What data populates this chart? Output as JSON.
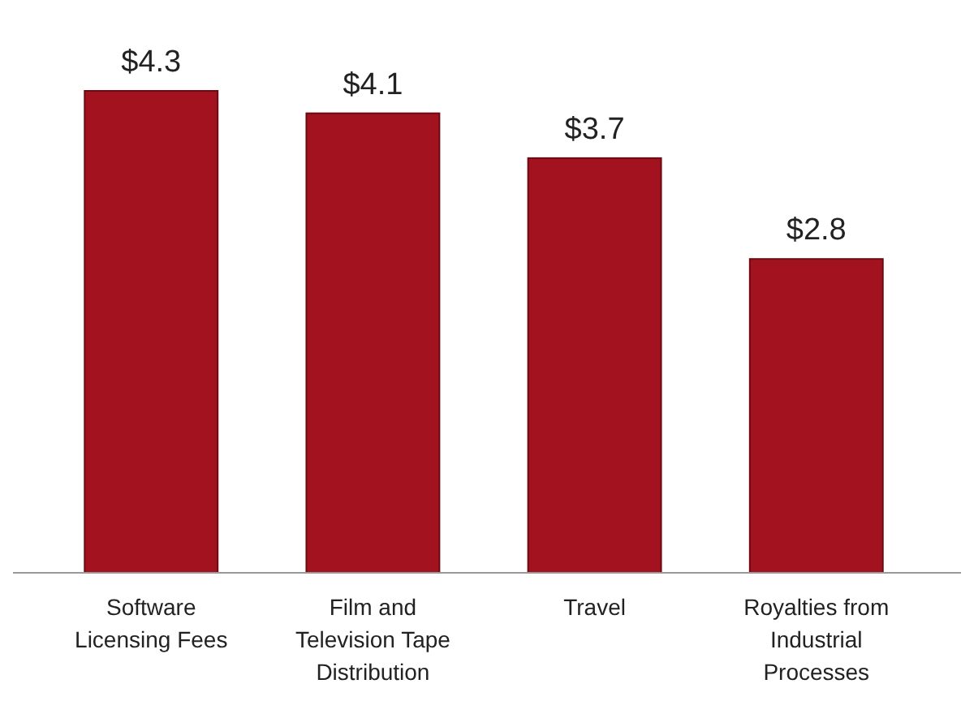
{
  "chart_data": {
    "type": "bar",
    "categories": [
      "Software Licensing Fees",
      "Film and Television Tape Distribution",
      "Travel",
      "Royalties from Industrial Processes"
    ],
    "values": [
      4.3,
      4.1,
      3.7,
      2.8
    ],
    "value_labels": [
      "$4.3",
      "$4.1",
      "$3.7",
      "$2.8"
    ],
    "color": "#a3131f"
  }
}
